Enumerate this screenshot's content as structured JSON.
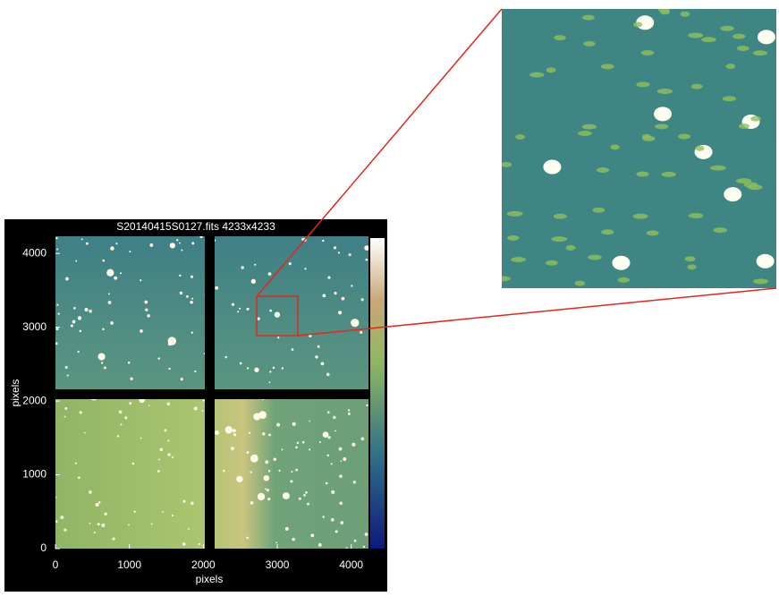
{
  "chart_data": {
    "type": "image",
    "title": "S20140415S0127.fits  4233x4233",
    "xlabel": "pixels",
    "ylabel": "pixels",
    "xlim": [
      0,
      4233
    ],
    "ylim": [
      0,
      4233
    ],
    "xticks": [
      0,
      1000,
      2000,
      3000,
      4000
    ],
    "yticks": [
      0,
      1000,
      2000,
      3000,
      4000
    ]
  }
}
